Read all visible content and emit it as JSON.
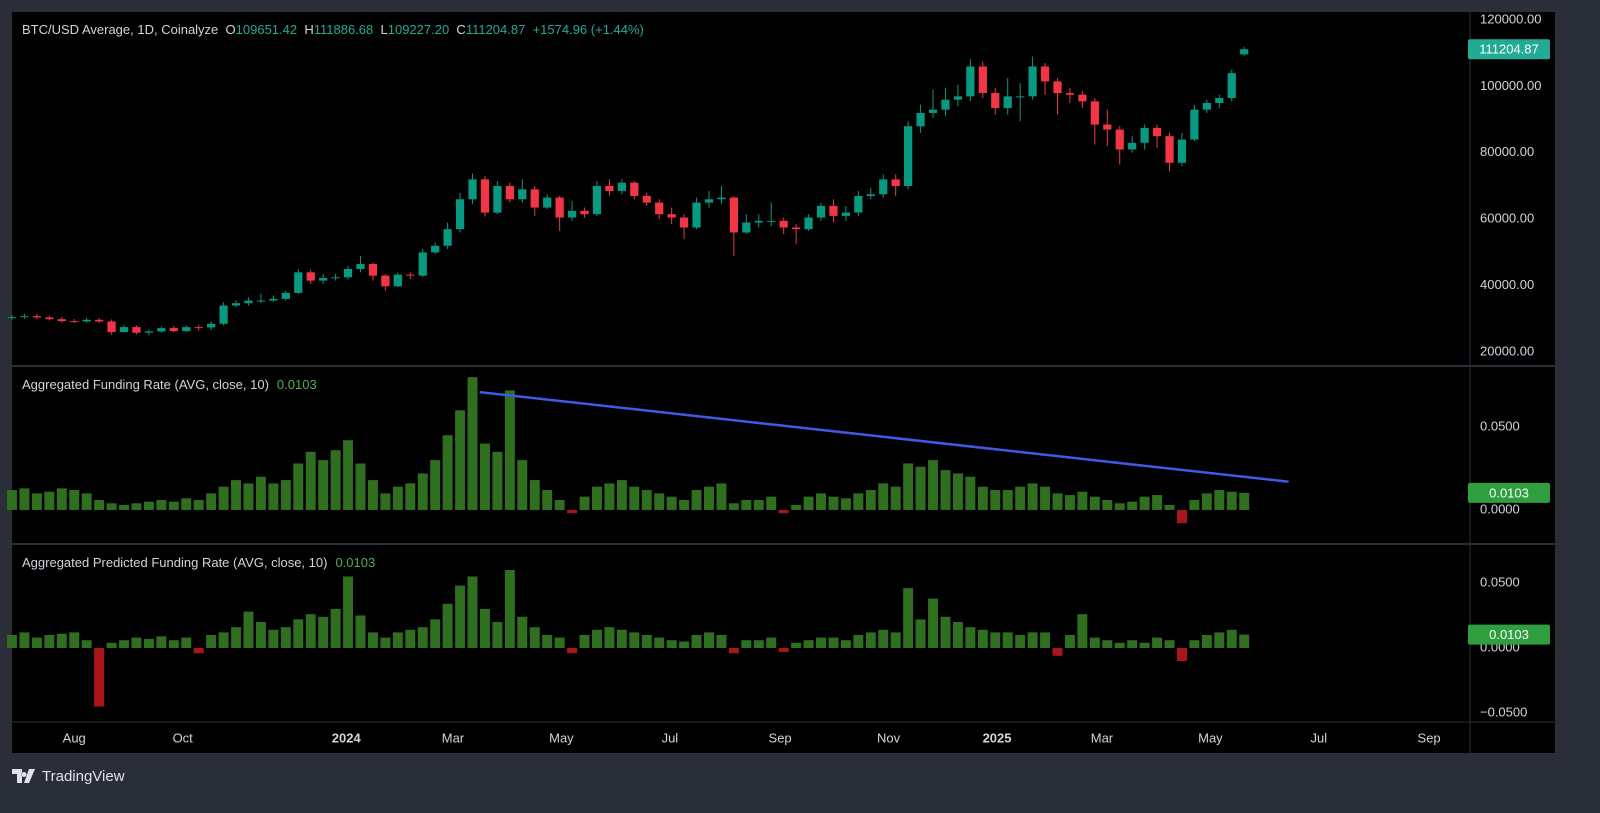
{
  "chart_data": [
    {
      "type": "candlestick",
      "title": "BTC/USD Average, 1D, Coinalyze",
      "ohlc_labels": [
        "O",
        "H",
        "L",
        "C"
      ],
      "last_labels": [
        "109651.42",
        "111886.68",
        "109227.20",
        "111204.87"
      ],
      "change": "+1574.96 (+1.44%)",
      "up_color": "#089981",
      "down_color": "#f23645",
      "x": [
        0,
        7,
        14,
        21,
        28,
        35,
        42,
        49,
        56,
        63,
        70,
        77,
        84,
        91,
        98,
        105,
        112,
        119,
        126,
        133,
        140,
        147,
        154,
        161,
        168,
        175,
        182,
        189,
        196,
        203,
        210,
        217,
        224,
        231,
        238,
        245,
        252,
        259,
        266,
        273,
        280,
        287,
        294,
        301,
        308,
        315,
        322,
        329,
        336,
        343,
        350,
        357,
        364,
        371,
        378,
        385,
        392,
        399,
        406,
        413,
        420,
        427,
        434,
        441,
        448,
        455,
        462,
        469,
        476,
        483,
        490,
        497,
        504,
        511,
        518,
        525,
        532,
        539,
        546,
        553,
        560,
        567,
        574,
        581,
        588,
        595,
        602,
        609,
        616,
        623,
        630,
        637,
        644,
        651,
        658,
        665,
        672,
        679,
        686,
        693
      ],
      "open": [
        30300,
        30500,
        30800,
        30400,
        29900,
        29300,
        29200,
        29700,
        29200,
        26000,
        27500,
        25800,
        26200,
        27200,
        26300,
        27500,
        27400,
        28500,
        34000,
        34700,
        35500,
        35500,
        36000,
        37800,
        44000,
        41500,
        42300,
        42500,
        45000,
        46500,
        43000,
        39800,
        43300,
        43000,
        50000,
        52000,
        57000,
        66000,
        72000,
        62000,
        70000,
        66000,
        69000,
        63500,
        66500,
        60500,
        62500,
        61500,
        70000,
        68500,
        71000,
        67000,
        65000,
        61500,
        60500,
        57500,
        65000,
        66000,
        66500,
        56000,
        59000,
        59500,
        59500,
        57500,
        57000,
        60500,
        64000,
        61000,
        62000,
        67000,
        67500,
        72000,
        70000,
        88000,
        92000,
        93000,
        96000,
        97000,
        106000,
        98000,
        93500,
        97000,
        97000,
        106000,
        101500,
        98000,
        97500,
        95500,
        88500,
        87000,
        81000,
        83000,
        87500,
        85000,
        77000,
        84000,
        93000,
        95000,
        96500,
        109651.42
      ],
      "high": [
        31200,
        31500,
        31500,
        31000,
        30600,
        29900,
        30300,
        30200,
        29800,
        28200,
        28000,
        26800,
        27700,
        27900,
        28000,
        28200,
        29200,
        35000,
        35500,
        36500,
        37500,
        37000,
        38500,
        45000,
        44800,
        43500,
        43500,
        45900,
        48900,
        47000,
        43500,
        44000,
        44000,
        51000,
        53000,
        59000,
        68000,
        73800,
        73000,
        71500,
        71000,
        72000,
        70000,
        67500,
        67000,
        65500,
        63500,
        71500,
        72000,
        72000,
        71500,
        68000,
        66000,
        63500,
        61500,
        66500,
        68500,
        70000,
        67000,
        61500,
        61500,
        65000,
        60500,
        58500,
        61500,
        65000,
        66000,
        64000,
        68500,
        69500,
        73500,
        73500,
        89500,
        94500,
        99000,
        99500,
        100500,
        108300,
        107500,
        99500,
        102500,
        101000,
        109000,
        107000,
        102500,
        99500,
        98500,
        96500,
        93000,
        88000,
        85000,
        88500,
        88500,
        86000,
        86000,
        94500,
        96000,
        97500,
        105000,
        111886.68
      ],
      "low": [
        29800,
        30000,
        29900,
        29500,
        28900,
        28800,
        28900,
        28800,
        25200,
        25800,
        25300,
        25000,
        25800,
        25900,
        26000,
        26500,
        26600,
        28000,
        33500,
        34000,
        34800,
        35000,
        35500,
        37500,
        40500,
        40500,
        41500,
        41800,
        44000,
        41500,
        38500,
        39500,
        42000,
        42500,
        49500,
        51000,
        56000,
        64500,
        60800,
        61500,
        65000,
        65000,
        61000,
        63000,
        56500,
        59500,
        60500,
        61000,
        67000,
        67500,
        66000,
        64000,
        60000,
        58500,
        54000,
        57000,
        63500,
        64500,
        49000,
        55500,
        57500,
        58000,
        55500,
        52500,
        56500,
        59500,
        59000,
        59500,
        61000,
        66000,
        66500,
        67000,
        69000,
        86000,
        90500,
        91000,
        94000,
        95500,
        96500,
        91500,
        91500,
        89500,
        96000,
        97500,
        91500,
        95000,
        93500,
        82500,
        82000,
        76500,
        80000,
        81000,
        81500,
        74500,
        76000,
        83500,
        92000,
        93500,
        95500,
        109227.2
      ],
      "close": [
        30500,
        30800,
        30400,
        29900,
        29300,
        29200,
        29700,
        29200,
        26000,
        27500,
        25800,
        26200,
        27200,
        26300,
        27500,
        27400,
        28500,
        34000,
        34700,
        35500,
        35500,
        36000,
        37800,
        44000,
        41500,
        42300,
        42500,
        45000,
        46500,
        43000,
        39800,
        43300,
        43000,
        50000,
        52000,
        57000,
        66000,
        72000,
        62000,
        70000,
        66000,
        69000,
        63500,
        66500,
        60500,
        62500,
        61500,
        70000,
        68500,
        71000,
        67000,
        65000,
        61500,
        60500,
        57500,
        65000,
        66000,
        66500,
        56000,
        59000,
        59500,
        59500,
        57500,
        57000,
        60500,
        64000,
        61000,
        62000,
        67000,
        67500,
        72000,
        70000,
        88000,
        92000,
        93000,
        96000,
        97000,
        106000,
        98000,
        93500,
        97000,
        97000,
        106000,
        101500,
        98000,
        97500,
        95500,
        88500,
        87000,
        81000,
        83000,
        87500,
        85000,
        77000,
        84000,
        93000,
        95000,
        96500,
        104000,
        111204.87
      ],
      "xlim": [
        0,
        820
      ],
      "xticks": [
        {
          "value": 35,
          "label": "Aug"
        },
        {
          "value": 96,
          "label": "Oct"
        },
        {
          "value": 188,
          "label": "2024"
        },
        {
          "value": 248,
          "label": "Mar"
        },
        {
          "value": 309,
          "label": "May"
        },
        {
          "value": 370,
          "label": "Jul"
        },
        {
          "value": 432,
          "label": "Sep"
        },
        {
          "value": 493,
          "label": "Nov"
        },
        {
          "value": 554,
          "label": "2025"
        },
        {
          "value": 613,
          "label": "Mar"
        },
        {
          "value": 674,
          "label": "May"
        },
        {
          "value": 735,
          "label": "Jul"
        },
        {
          "value": 797,
          "label": "Sep"
        }
      ],
      "ylim": [
        16084,
        122410
      ],
      "yticks": [
        {
          "value": 20000,
          "label": "20000.00"
        },
        {
          "value": 40000,
          "label": "40000.00"
        },
        {
          "value": 60000,
          "label": "60000.00"
        },
        {
          "value": 80000,
          "label": "80000.00"
        },
        {
          "value": 100000,
          "label": "100000.00"
        },
        {
          "value": 120000,
          "label": "120000.00"
        }
      ],
      "grid": false
    },
    {
      "type": "bar",
      "title": "Aggregated Funding Rate (AVG, close, 10)",
      "up_color": "#2f6f1f",
      "down_color": "#a8161b",
      "values": [
        0.012,
        0.013,
        0.01,
        0.011,
        0.013,
        0.012,
        0.01,
        0.006,
        0.004,
        0.003,
        0.004,
        0.005,
        0.006,
        0.005,
        0.007,
        0.006,
        0.01,
        0.014,
        0.018,
        0.016,
        0.02,
        0.016,
        0.018,
        0.028,
        0.035,
        0.03,
        0.036,
        0.042,
        0.028,
        0.018,
        0.01,
        0.014,
        0.016,
        0.022,
        0.03,
        0.045,
        0.06,
        0.08,
        0.04,
        0.035,
        0.072,
        0.03,
        0.018,
        0.012,
        0.006,
        -0.002,
        0.008,
        0.014,
        0.016,
        0.018,
        0.014,
        0.012,
        0.01,
        0.008,
        0.006,
        0.012,
        0.014,
        0.016,
        0.004,
        0.006,
        0.006,
        0.008,
        -0.002,
        0.003,
        0.008,
        0.01,
        0.008,
        0.007,
        0.01,
        0.012,
        0.016,
        0.014,
        0.028,
        0.026,
        0.03,
        0.024,
        0.022,
        0.02,
        0.014,
        0.012,
        0.012,
        0.014,
        0.016,
        0.014,
        0.01,
        0.009,
        0.011,
        0.008,
        0.006,
        0.004,
        0.005,
        0.008,
        0.009,
        0.003,
        -0.008,
        0.006,
        0.01,
        0.012,
        0.011,
        0.0103
      ],
      "trendline": {
        "x": [
          263,
          718
        ],
        "values": [
          0.071,
          0.017
        ],
        "color": "#3d5bea"
      },
      "ylim": [
        -0.0199,
        0.0861
      ],
      "yticks": [
        {
          "value": 0,
          "label": "0.0000"
        },
        {
          "value": 0.05,
          "label": "0.0500"
        }
      ],
      "grid": false
    },
    {
      "type": "bar",
      "title": "Aggregated Predicted Funding Rate (AVG, close, 10)",
      "up_color": "#2f6f1f",
      "down_color": "#a8161b",
      "values": [
        0.01,
        0.012,
        0.008,
        0.01,
        0.011,
        0.012,
        0.006,
        -0.045,
        0.004,
        0.006,
        0.008,
        0.007,
        0.009,
        0.006,
        0.008,
        -0.004,
        0.01,
        0.012,
        0.016,
        0.028,
        0.02,
        0.014,
        0.016,
        0.022,
        0.026,
        0.024,
        0.03,
        0.055,
        0.025,
        0.012,
        0.008,
        0.012,
        0.014,
        0.016,
        0.022,
        0.034,
        0.048,
        0.055,
        0.03,
        0.02,
        0.06,
        0.024,
        0.016,
        0.01,
        0.008,
        -0.004,
        0.01,
        0.014,
        0.016,
        0.014,
        0.012,
        0.01,
        0.008,
        0.006,
        0.005,
        0.01,
        0.012,
        0.01,
        -0.004,
        0.006,
        0.006,
        0.008,
        -0.003,
        0.004,
        0.006,
        0.008,
        0.008,
        0.006,
        0.01,
        0.012,
        0.014,
        0.012,
        0.046,
        0.022,
        0.038,
        0.024,
        0.02,
        0.016,
        0.014,
        0.012,
        0.012,
        0.01,
        0.012,
        0.012,
        -0.006,
        0.01,
        0.026,
        0.008,
        0.006,
        0.004,
        0.006,
        0.004,
        0.008,
        0.006,
        -0.01,
        0.006,
        0.01,
        0.012,
        0.014,
        0.0103
      ],
      "ylim": [
        -0.0569,
        0.0792
      ],
      "yticks": [
        {
          "value": -0.05,
          "label": "−0.0500"
        },
        {
          "value": 0,
          "label": "0.0000"
        },
        {
          "value": 0.05,
          "label": "0.0500"
        }
      ],
      "grid": false
    }
  ],
  "footer": {
    "brand": "TradingView"
  }
}
